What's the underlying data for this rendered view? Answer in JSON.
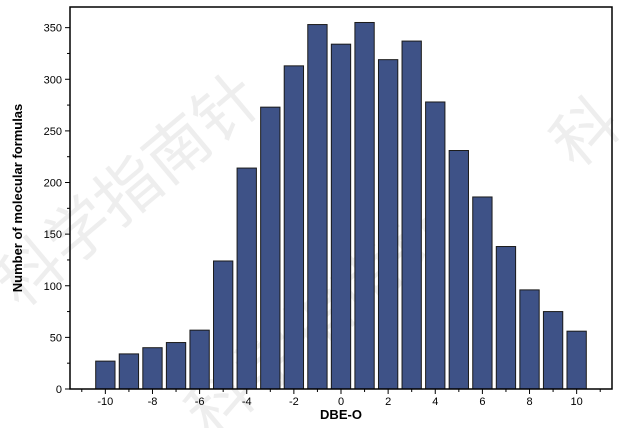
{
  "chart_data": {
    "type": "bar",
    "x": [
      -10,
      -9,
      -8,
      -7,
      -6,
      -5,
      -4,
      -3,
      -2,
      -1,
      0,
      1,
      2,
      3,
      4,
      5,
      6,
      7,
      8,
      9,
      10
    ],
    "values": [
      27,
      34,
      40,
      45,
      57,
      124,
      214,
      273,
      313,
      353,
      334,
      355,
      319,
      337,
      278,
      231,
      186,
      138,
      96,
      75,
      56
    ],
    "xlabel": "DBE-O",
    "ylabel": "Number of molecular formulas",
    "xlim": [
      -11.5,
      11.5
    ],
    "ylim": [
      0,
      370
    ],
    "xticks": [
      -10,
      -8,
      -6,
      -4,
      -2,
      0,
      2,
      4,
      6,
      8,
      10
    ],
    "yticks": [
      0,
      50,
      100,
      150,
      200,
      250,
      300,
      350
    ],
    "grid": false,
    "legend": "none",
    "colors": {
      "bar_fill": "#3e5287",
      "bar_stroke": "#1a1a1a",
      "axis": "#000000"
    }
  },
  "watermark": {
    "text_1": "科学指南针",
    "text_2": "科学指南针",
    "text_3": "科"
  }
}
